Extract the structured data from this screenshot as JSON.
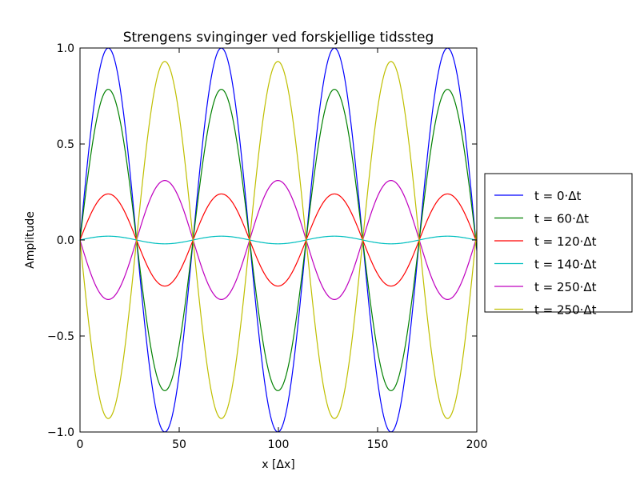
{
  "chart_data": {
    "type": "line",
    "title": "Strengens svinginger ved forskjellige tidssteg",
    "xlabel": "x [Δx]",
    "ylabel": "Amplitude",
    "xlim": [
      0,
      200
    ],
    "ylim": [
      -1.0,
      1.0
    ],
    "x_ticks": [
      "0",
      "50",
      "100",
      "150",
      "200"
    ],
    "y_ticks": [
      "−1.0",
      "−0.5",
      "0.0",
      "0.5",
      "1.0"
    ],
    "grid": false,
    "legend_position": "right, outside plot",
    "wavelength": 57,
    "series": [
      {
        "name": "t = 0·Δt",
        "amplitude": 1.0,
        "color": "#0000ff"
      },
      {
        "name": "t = 60·Δt",
        "amplitude": 0.785,
        "color": "#008000"
      },
      {
        "name": "t = 120·Δt",
        "amplitude": 0.24,
        "color": "#ff0000"
      },
      {
        "name": "t = 140·Δt",
        "amplitude": 0.02,
        "color": "#00bfbf"
      },
      {
        "name": "t = 250·Δt",
        "amplitude": -0.31,
        "color": "#bf00bf"
      },
      {
        "name": "t = 250·Δt",
        "amplitude": -0.93,
        "color": "#bfbf00"
      }
    ]
  }
}
